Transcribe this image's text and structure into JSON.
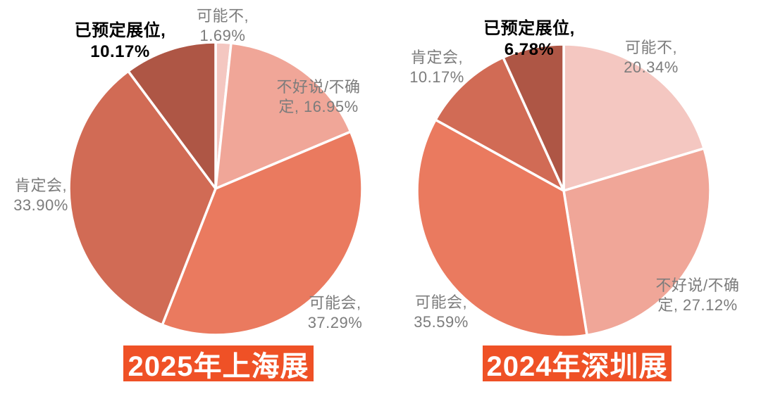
{
  "styles": {
    "background": "#ffffff",
    "divider_color": "#ffffff",
    "label_color": "#7c7c7c",
    "emphasis_label_color": "#000000",
    "title_bg": "#ef5126",
    "title_text_color": "#ffffff"
  },
  "chart_data": [
    {
      "type": "pie",
      "title": "2025年上海展",
      "unit": "%",
      "start_angle": "top",
      "direction": "clockwise",
      "categories": [
        "可能不",
        "不好说/不确定",
        "可能会",
        "肯定会",
        "已预定展位"
      ],
      "values": [
        1.69,
        16.95,
        37.29,
        33.9,
        10.17
      ],
      "slices": [
        {
          "label": "可能不",
          "value": 1.69,
          "color": "#f4c7c1",
          "emphasis": false,
          "label_lines": [
            "可能不,",
            "1.69%"
          ]
        },
        {
          "label": "不好说/不确定",
          "value": 16.95,
          "color": "#f0a698",
          "emphasis": false,
          "label_lines": [
            "不好说/不确",
            "定, 16.95%"
          ]
        },
        {
          "label": "可能会",
          "value": 37.29,
          "color": "#ea7a5f",
          "emphasis": false,
          "label_lines": [
            "可能会,",
            "37.29%"
          ]
        },
        {
          "label": "肯定会",
          "value": 33.9,
          "color": "#d16b55",
          "emphasis": false,
          "label_lines": [
            "肯定会,",
            "33.90%"
          ]
        },
        {
          "label": "已预定展位",
          "value": 10.17,
          "color": "#ae5645",
          "emphasis": true,
          "label_lines": [
            "已预定展位,",
            "10.17%"
          ]
        }
      ]
    },
    {
      "type": "pie",
      "title": "2024年深圳展",
      "unit": "%",
      "start_angle": "top",
      "direction": "clockwise",
      "categories": [
        "可能不",
        "不好说/不确定",
        "可能会",
        "肯定会",
        "已预定展位"
      ],
      "values": [
        20.34,
        27.12,
        35.59,
        10.17,
        6.78
      ],
      "slices": [
        {
          "label": "可能不",
          "value": 20.34,
          "color": "#f4c7c1",
          "emphasis": false,
          "label_lines": [
            "可能不,",
            "20.34%"
          ]
        },
        {
          "label": "不好说/不确定",
          "value": 27.12,
          "color": "#f0a698",
          "emphasis": false,
          "label_lines": [
            "不好说/不确",
            "定, 27.12%"
          ]
        },
        {
          "label": "可能会",
          "value": 35.59,
          "color": "#ea7a5f",
          "emphasis": false,
          "label_lines": [
            "可能会,",
            "35.59%"
          ]
        },
        {
          "label": "肯定会",
          "value": 10.17,
          "color": "#d16b55",
          "emphasis": false,
          "label_lines": [
            "肯定会,",
            "10.17%"
          ]
        },
        {
          "label": "已预定展位",
          "value": 6.78,
          "color": "#ae5645",
          "emphasis": true,
          "label_lines": [
            "已预定展位,",
            "6.78%"
          ]
        }
      ]
    }
  ]
}
